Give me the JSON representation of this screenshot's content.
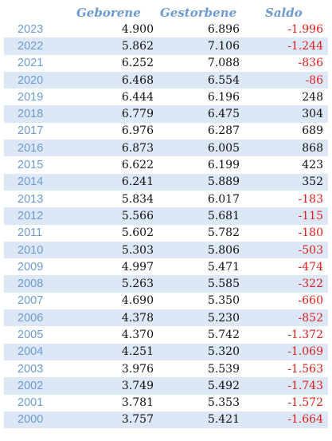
{
  "headers": {
    "geborene": "Geborene",
    "gestorbene": "Gestorbene",
    "saldo": "Saldo"
  },
  "colors": {
    "header_text": "#6d9bd1",
    "year_text": "#6d9bd1",
    "band": "#dce8f5",
    "negative": "#e11d1d",
    "positive": "#111111"
  },
  "rows": [
    {
      "year": "2023",
      "geborene": "4.900",
      "gestorbene": "6.896",
      "saldo": "-1.996",
      "negative": true
    },
    {
      "year": "2022",
      "geborene": "5.862",
      "gestorbene": "7.106",
      "saldo": "-1.244",
      "negative": true
    },
    {
      "year": "2021",
      "geborene": "6.252",
      "gestorbene": "7.088",
      "saldo": "-836",
      "negative": true
    },
    {
      "year": "2020",
      "geborene": "6.468",
      "gestorbene": "6.554",
      "saldo": "-86",
      "negative": true
    },
    {
      "year": "2019",
      "geborene": "6.444",
      "gestorbene": "6.196",
      "saldo": "248",
      "negative": false
    },
    {
      "year": "2018",
      "geborene": "6.779",
      "gestorbene": "6.475",
      "saldo": "304",
      "negative": false
    },
    {
      "year": "2017",
      "geborene": "6.976",
      "gestorbene": "6.287",
      "saldo": "689",
      "negative": false
    },
    {
      "year": "2016",
      "geborene": "6.873",
      "gestorbene": "6.005",
      "saldo": "868",
      "negative": false
    },
    {
      "year": "2015",
      "geborene": "6.622",
      "gestorbene": "6.199",
      "saldo": "423",
      "negative": false
    },
    {
      "year": "2014",
      "geborene": "6.241",
      "gestorbene": "5.889",
      "saldo": "352",
      "negative": false
    },
    {
      "year": "2013",
      "geborene": "5.834",
      "gestorbene": "6.017",
      "saldo": "-183",
      "negative": true
    },
    {
      "year": "2012",
      "geborene": "5.566",
      "gestorbene": "5.681",
      "saldo": "-115",
      "negative": true
    },
    {
      "year": "2011",
      "geborene": "5.602",
      "gestorbene": "5.782",
      "saldo": "-180",
      "negative": true
    },
    {
      "year": "2010",
      "geborene": "5.303",
      "gestorbene": "5.806",
      "saldo": "-503",
      "negative": true
    },
    {
      "year": "2009",
      "geborene": "4.997",
      "gestorbene": "5.471",
      "saldo": "-474",
      "negative": true
    },
    {
      "year": "2008",
      "geborene": "5.263",
      "gestorbene": "5.585",
      "saldo": "-322",
      "negative": true
    },
    {
      "year": "2007",
      "geborene": "4.690",
      "gestorbene": "5.350",
      "saldo": "-660",
      "negative": true
    },
    {
      "year": "2006",
      "geborene": "4.378",
      "gestorbene": "5.230",
      "saldo": "-852",
      "negative": true
    },
    {
      "year": "2005",
      "geborene": "4.370",
      "gestorbene": "5.742",
      "saldo": "-1.372",
      "negative": true
    },
    {
      "year": "2004",
      "geborene": "4.251",
      "gestorbene": "5.320",
      "saldo": "-1.069",
      "negative": true
    },
    {
      "year": "2003",
      "geborene": "3.976",
      "gestorbene": "5.539",
      "saldo": "-1.563",
      "negative": true
    },
    {
      "year": "2002",
      "geborene": "3.749",
      "gestorbene": "5.492",
      "saldo": "-1.743",
      "negative": true
    },
    {
      "year": "2001",
      "geborene": "3.781",
      "gestorbene": "5.353",
      "saldo": "-1.572",
      "negative": true
    },
    {
      "year": "2000",
      "geborene": "3.757",
      "gestorbene": "5.421",
      "saldo": "-1.664",
      "negative": true
    }
  ]
}
